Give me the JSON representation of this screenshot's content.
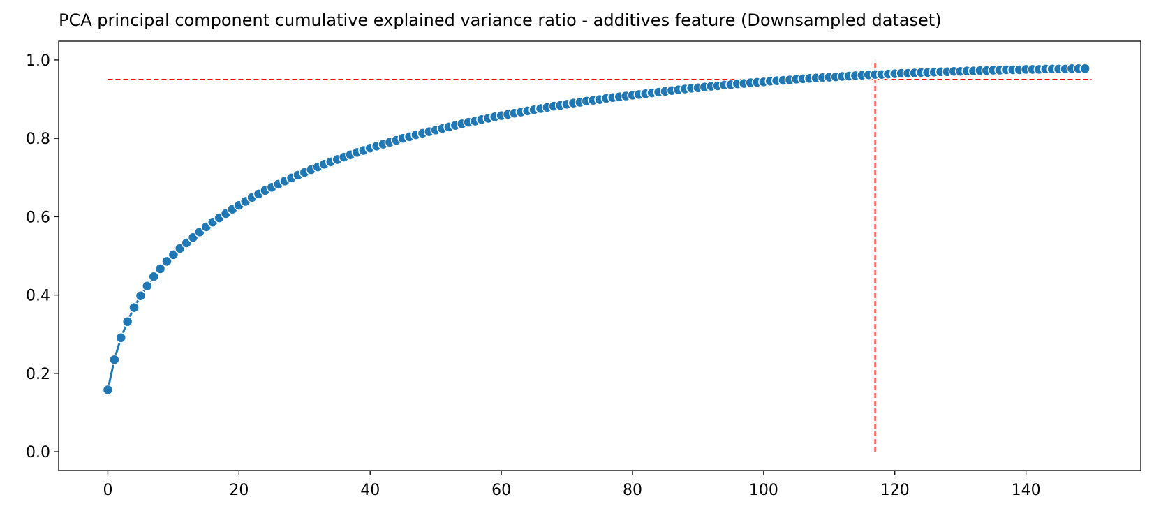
{
  "chart_data": {
    "type": "line",
    "title": "PCA principal component cumulative explained variance ratio - additives feature (Downsampled dataset)",
    "xlabel": "",
    "ylabel": "",
    "xlim": [
      -7.5,
      157.5
    ],
    "ylim": [
      -0.048,
      1.048
    ],
    "xticks": [
      0,
      20,
      40,
      60,
      80,
      100,
      120,
      140
    ],
    "yticks": [
      0.0,
      0.2,
      0.4,
      0.6,
      0.8,
      1.0
    ],
    "ytick_labels": [
      "0.0",
      "0.2",
      "0.4",
      "0.6",
      "0.8",
      "1.0"
    ],
    "grid": false,
    "series": [
      {
        "color": "#1f77b4",
        "marker": "circle",
        "x_start": 0,
        "x_step": 1,
        "values": [
          0.158,
          0.235,
          0.291,
          0.332,
          0.368,
          0.398,
          0.423,
          0.447,
          0.467,
          0.486,
          0.503,
          0.519,
          0.533,
          0.547,
          0.561,
          0.574,
          0.586,
          0.597,
          0.608,
          0.619,
          0.629,
          0.639,
          0.649,
          0.658,
          0.667,
          0.675,
          0.683,
          0.691,
          0.699,
          0.706,
          0.713,
          0.72,
          0.727,
          0.734,
          0.74,
          0.746,
          0.752,
          0.758,
          0.764,
          0.769,
          0.775,
          0.78,
          0.785,
          0.79,
          0.795,
          0.8,
          0.804,
          0.809,
          0.813,
          0.817,
          0.821,
          0.825,
          0.829,
          0.833,
          0.837,
          0.841,
          0.844,
          0.848,
          0.851,
          0.855,
          0.858,
          0.861,
          0.864,
          0.867,
          0.87,
          0.873,
          0.876,
          0.879,
          0.882,
          0.884,
          0.887,
          0.89,
          0.892,
          0.895,
          0.897,
          0.899,
          0.902,
          0.904,
          0.906,
          0.908,
          0.91,
          0.912,
          0.914,
          0.916,
          0.918,
          0.92,
          0.922,
          0.924,
          0.926,
          0.928,
          0.929,
          0.931,
          0.933,
          0.934,
          0.936,
          0.937,
          0.939,
          0.94,
          0.942,
          0.943,
          0.944,
          0.946,
          0.947,
          0.948,
          0.949,
          0.951,
          0.952,
          0.953,
          0.954,
          0.955,
          0.956,
          0.957,
          0.958,
          0.959,
          0.96,
          0.961,
          0.962,
          0.963,
          0.963,
          0.964,
          0.965,
          0.966,
          0.966,
          0.967,
          0.968,
          0.968,
          0.969,
          0.97,
          0.97,
          0.971,
          0.971,
          0.972,
          0.972,
          0.973,
          0.973,
          0.974,
          0.974,
          0.975,
          0.975,
          0.975,
          0.976,
          0.976,
          0.976,
          0.977,
          0.977,
          0.977,
          0.977,
          0.978,
          0.978,
          0.978
        ]
      }
    ],
    "reference_lines": [
      {
        "orientation": "horizontal",
        "y": 0.95,
        "x_from": 0,
        "x_to": 150,
        "color": "#ff0000",
        "style": "dashed"
      },
      {
        "orientation": "vertical",
        "x": 117,
        "y_from": 0.0,
        "y_to": 1.0,
        "color": "#ff0000",
        "style": "dashed"
      }
    ]
  }
}
